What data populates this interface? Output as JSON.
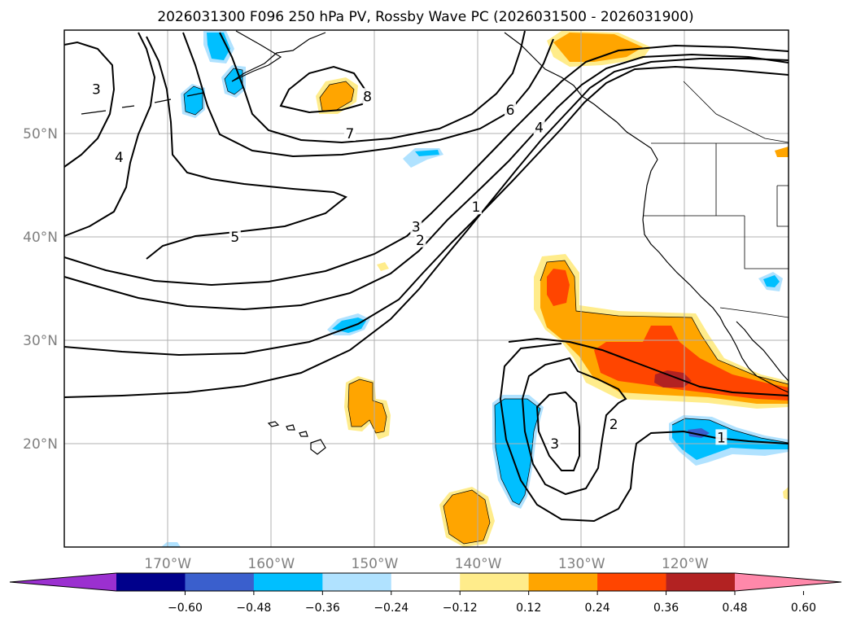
{
  "title": "2026031300 F096 250 hPa PV, Rossby Wave PC (2026031500 - 2026031900)",
  "map": {
    "projection": "cylindrical",
    "lon_range": [
      -180,
      -110
    ],
    "lat_range": [
      10,
      60
    ],
    "lon_ticks": [
      {
        "value": -170,
        "label": "170°W"
      },
      {
        "value": -160,
        "label": "160°W"
      },
      {
        "value": -150,
        "label": "150°W"
      },
      {
        "value": -140,
        "label": "140°W"
      },
      {
        "value": -130,
        "label": "130°W"
      },
      {
        "value": -120,
        "label": "120°W"
      }
    ],
    "lat_ticks": [
      {
        "value": 20,
        "label": "20°N"
      },
      {
        "value": 30,
        "label": "30°N"
      },
      {
        "value": 40,
        "label": "40°N"
      },
      {
        "value": 50,
        "label": "50°N"
      }
    ],
    "grid": true,
    "tick_label_color": "#808080",
    "contour_labels": [
      {
        "text": "3",
        "lon": -176.9,
        "lat": 54.3
      },
      {
        "text": "4",
        "lon": -174.7,
        "lat": 47.7
      },
      {
        "text": "8",
        "lon": -150.7,
        "lat": 53.6
      },
      {
        "text": "7",
        "lon": -152.4,
        "lat": 50.0
      },
      {
        "text": "6",
        "lon": -136.9,
        "lat": 52.3
      },
      {
        "text": "4",
        "lon": -134.1,
        "lat": 50.6
      },
      {
        "text": "5",
        "lon": -163.5,
        "lat": 40.0
      },
      {
        "text": "3",
        "lon": -146.0,
        "lat": 41.0
      },
      {
        "text": "2",
        "lon": -145.6,
        "lat": 39.7
      },
      {
        "text": "1",
        "lon": -140.2,
        "lat": 42.9
      },
      {
        "text": "3",
        "lon": -132.6,
        "lat": 20.0
      },
      {
        "text": "2",
        "lon": -126.9,
        "lat": 21.9
      },
      {
        "text": "1",
        "lon": -116.5,
        "lat": 20.6
      }
    ]
  },
  "colorbar": {
    "tick_labels": [
      "−0.60",
      "−0.48",
      "−0.36",
      "−0.24",
      "−0.12",
      "0.12",
      "0.24",
      "0.36",
      "0.48",
      "0.60"
    ],
    "colors": [
      "#9b30d0",
      "#00008b",
      "#3a5fcd",
      "#00bfff",
      "#b0e2ff",
      "#ffffff",
      "#ffec8b",
      "#ffa500",
      "#ff4500",
      "#b22222",
      "#ff88aa"
    ]
  },
  "chart_data": {
    "type": "contour",
    "fields": [
      "250 hPa PV (contours, labeled 1-8 PVU)",
      "Rossby Wave PC (shaded)"
    ],
    "shading_levels": [
      -0.6,
      -0.48,
      -0.36,
      -0.24,
      -0.12,
      0.12,
      0.24,
      0.36,
      0.48,
      0.6
    ]
  }
}
